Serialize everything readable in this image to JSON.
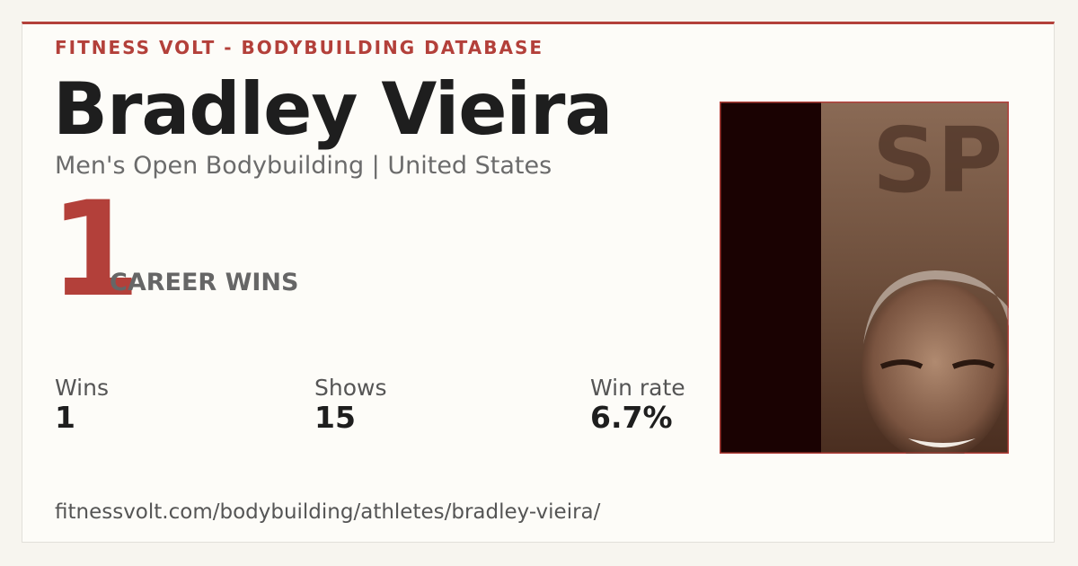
{
  "header": {
    "brand": "FITNESS VOLT - BODYBUILDING DATABASE"
  },
  "athlete": {
    "name": "Bradley Vieira",
    "subtitle": "Men's Open Bodybuilding | United States"
  },
  "highlight": {
    "number": "1",
    "label": "CAREER WINS"
  },
  "stats": [
    {
      "label": "Wins",
      "value": "1"
    },
    {
      "label": "Shows",
      "value": "15"
    },
    {
      "label": "Win rate",
      "value": "6.7%"
    }
  ],
  "footer": {
    "url": "fitnessvolt.com/bodybuilding/athletes/bradley-vieira/"
  }
}
